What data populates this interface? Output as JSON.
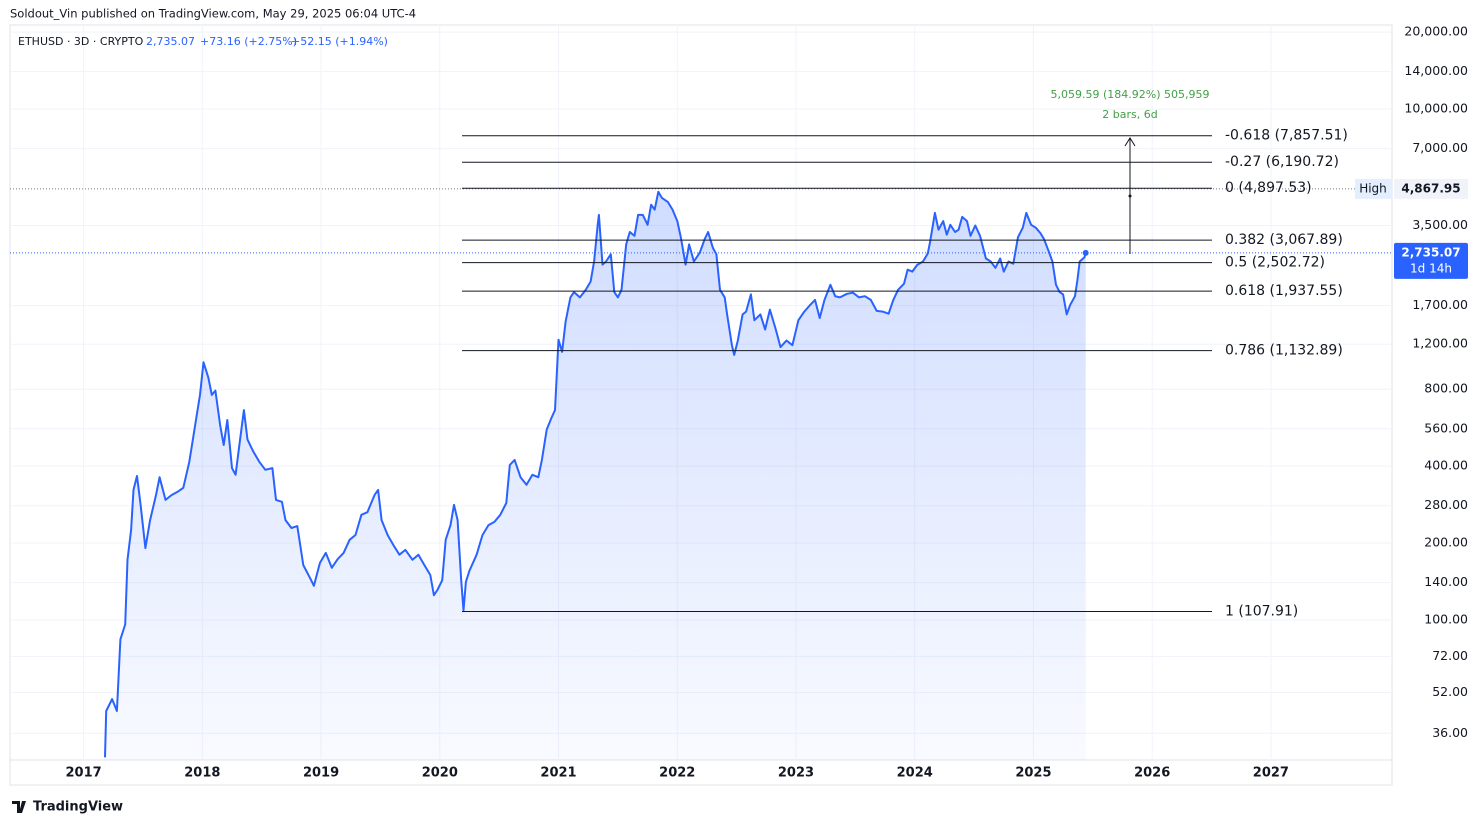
{
  "header": {
    "publisher": "Soldout_Vin published on TradingView.com, May 29, 2025 06:04 UTC-4",
    "symbol": "ETHUSD · 3D · CRYPTO",
    "price": "2,735.07",
    "change": "+73.16 (+2.75%)",
    "change2": "+52.15 (+1.94%)"
  },
  "chart_data": {
    "type": "line",
    "color": "#2962ff",
    "log_scale": true,
    "grid": true,
    "x": [
      2017.18,
      2017.19,
      2017.24,
      2017.28,
      2017.31,
      2017.35,
      2017.37,
      2017.4,
      2017.42,
      2017.45,
      2017.48,
      2017.52,
      2017.56,
      2017.61,
      2017.64,
      2017.69,
      2017.74,
      2017.79,
      2017.84,
      2017.89,
      2017.94,
      2017.98,
      2018.01,
      2018.05,
      2018.08,
      2018.11,
      2018.15,
      2018.18,
      2018.21,
      2018.25,
      2018.28,
      2018.32,
      2018.35,
      2018.38,
      2018.43,
      2018.48,
      2018.53,
      2018.59,
      2018.62,
      2018.67,
      2018.7,
      2018.75,
      2018.8,
      2018.85,
      2018.91,
      2018.94,
      2018.99,
      2019.04,
      2019.09,
      2019.14,
      2019.19,
      2019.24,
      2019.29,
      2019.34,
      2019.39,
      2019.45,
      2019.48,
      2019.51,
      2019.56,
      2019.61,
      2019.66,
      2019.71,
      2019.77,
      2019.82,
      2019.87,
      2019.92,
      2019.95,
      2019.98,
      2020.02,
      2020.05,
      2020.09,
      2020.12,
      2020.15,
      2020.18,
      2020.2,
      2020.22,
      2020.25,
      2020.31,
      2020.36,
      2020.41,
      2020.46,
      2020.51,
      2020.56,
      2020.59,
      2020.63,
      2020.68,
      2020.73,
      2020.78,
      2020.83,
      2020.86,
      2020.9,
      2020.94,
      2020.97,
      2021.0,
      2021.03,
      2021.06,
      2021.1,
      2021.13,
      2021.18,
      2021.23,
      2021.27,
      2021.3,
      2021.33,
      2021.34,
      2021.37,
      2021.4,
      2021.44,
      2021.47,
      2021.5,
      2021.53,
      2021.57,
      2021.6,
      2021.64,
      2021.67,
      2021.71,
      2021.75,
      2021.78,
      2021.81,
      2021.84,
      2021.87,
      2021.92,
      2021.96,
      2022.0,
      2022.03,
      2022.07,
      2022.1,
      2022.14,
      2022.19,
      2022.23,
      2022.26,
      2022.3,
      2022.33,
      2022.36,
      2022.4,
      2022.42,
      2022.46,
      2022.48,
      2022.51,
      2022.55,
      2022.58,
      2022.62,
      2022.65,
      2022.7,
      2022.74,
      2022.78,
      2022.83,
      2022.87,
      2022.92,
      2022.97,
      2023.02,
      2023.07,
      2023.12,
      2023.16,
      2023.2,
      2023.24,
      2023.29,
      2023.33,
      2023.37,
      2023.43,
      2023.48,
      2023.53,
      2023.58,
      2023.63,
      2023.68,
      2023.73,
      2023.78,
      2023.82,
      2023.86,
      2023.91,
      2023.94,
      2023.98,
      2024.02,
      2024.07,
      2024.11,
      2024.13,
      2024.17,
      2024.2,
      2024.24,
      2024.27,
      2024.3,
      2024.34,
      2024.37,
      2024.4,
      2024.44,
      2024.47,
      2024.51,
      2024.55,
      2024.6,
      2024.64,
      2024.68,
      2024.72,
      2024.75,
      2024.79,
      2024.83,
      2024.87,
      2024.91,
      2024.94,
      2024.98,
      2025.02,
      2025.06,
      2025.09,
      2025.13,
      2025.16,
      2025.19,
      2025.22,
      2025.25,
      2025.28,
      2025.31,
      2025.35,
      2025.37,
      2025.39,
      2025.43,
      2025.44
    ],
    "values": [
      29,
      44,
      49,
      44,
      84,
      96,
      172,
      225,
      323,
      366,
      282,
      191,
      246,
      308,
      362,
      295,
      308,
      317,
      329,
      416,
      580,
      760,
      1020,
      890,
      760,
      790,
      580,
      484,
      606,
      393,
      370,
      517,
      663,
      508,
      455,
      416,
      387,
      393,
      295,
      290,
      246,
      229,
      233,
      164,
      145,
      136,
      167,
      183,
      160,
      173,
      183,
      206,
      215,
      258,
      264,
      308,
      323,
      246,
      215,
      196,
      180,
      188,
      172,
      180,
      164,
      150,
      125,
      131,
      143,
      206,
      235,
      282,
      246,
      143,
      109,
      141,
      156,
      180,
      215,
      235,
      242,
      258,
      287,
      404,
      423,
      362,
      338,
      370,
      362,
      423,
      556,
      617,
      663,
      1250,
      1120,
      1470,
      1830,
      1920,
      1830,
      1960,
      2110,
      2530,
      3520,
      3850,
      2460,
      2530,
      2700,
      1920,
      1830,
      1960,
      2950,
      3300,
      3190,
      3850,
      3850,
      3520,
      4220,
      4040,
      4740,
      4490,
      4330,
      4040,
      3640,
      3150,
      2460,
      2950,
      2530,
      2740,
      3090,
      3300,
      2860,
      2700,
      1960,
      1830,
      1570,
      1190,
      1090,
      1240,
      1570,
      1610,
      1880,
      1490,
      1570,
      1370,
      1640,
      1370,
      1170,
      1240,
      1190,
      1490,
      1610,
      1710,
      1790,
      1520,
      1790,
      2050,
      1850,
      1830,
      1890,
      1910,
      1830,
      1850,
      1790,
      1620,
      1610,
      1580,
      1790,
      1960,
      2070,
      2350,
      2310,
      2450,
      2530,
      2720,
      3020,
      3920,
      3370,
      3640,
      3220,
      3520,
      3300,
      3370,
      3780,
      3640,
      3190,
      3500,
      3190,
      2600,
      2530,
      2390,
      2600,
      2310,
      2530,
      2480,
      3150,
      3430,
      3920,
      3520,
      3430,
      3260,
      3090,
      2760,
      2530,
      2050,
      1920,
      1880,
      1570,
      1710,
      1850,
      2140,
      2530,
      2630,
      2735.07
    ],
    "xlim": [
      2016.38,
      2028.02
    ],
    "xticks": [
      2017,
      2018,
      2019,
      2020,
      2021,
      2022,
      2023,
      2024,
      2025,
      2026,
      2027
    ],
    "ylim": [
      28.3,
      21320
    ],
    "yticks": [
      {
        "value": 36,
        "label": "36.00"
      },
      {
        "value": 52,
        "label": "52.00"
      },
      {
        "value": 72,
        "label": "72.00"
      },
      {
        "value": 100,
        "label": "100.00"
      },
      {
        "value": 140,
        "label": "140.00"
      },
      {
        "value": 200,
        "label": "200.00"
      },
      {
        "value": 280,
        "label": "280.00"
      },
      {
        "value": 400,
        "label": "400.00"
      },
      {
        "value": 560,
        "label": "560.00"
      },
      {
        "value": 800,
        "label": "800.00"
      },
      {
        "value": 1200,
        "label": "1,200.00"
      },
      {
        "value": 1700,
        "label": "1,700.00"
      },
      {
        "value": 3500,
        "label": "3,500.00"
      },
      {
        "value": 7000,
        "label": "7,000.00"
      },
      {
        "value": 10000,
        "label": "10,000.00"
      },
      {
        "value": 14000,
        "label": "14,000.00"
      },
      {
        "value": 20000,
        "label": "20,000.00"
      }
    ],
    "fib_levels": [
      {
        "value": 7857.51,
        "label": "-0.618 (7,857.51)"
      },
      {
        "value": 6190.72,
        "label": "-0.27 (6,190.72)"
      },
      {
        "value": 4897.53,
        "label": "0 (4,897.53)"
      },
      {
        "value": 3067.89,
        "label": "0.382 (3,067.89)"
      },
      {
        "value": 2502.72,
        "label": "0.5 (2,502.72)"
      },
      {
        "value": 1937.55,
        "label": "0.618 (1,937.55)"
      },
      {
        "value": 1132.89,
        "label": "0.786 (1,132.89)"
      },
      {
        "value": 107.91,
        "label": "1 (107.91)"
      }
    ],
    "measure": {
      "text": "5,059.59 (184.92%) 505,959",
      "text2": "2 bars, 6d"
    },
    "high": {
      "label": "High",
      "value": 4867.95,
      "value_label": "4,867.95"
    },
    "last": {
      "value": 2735.07,
      "value_label": "2,735.07",
      "countdown": "1d 14h"
    }
  },
  "footer": {
    "brand": "TradingView"
  }
}
